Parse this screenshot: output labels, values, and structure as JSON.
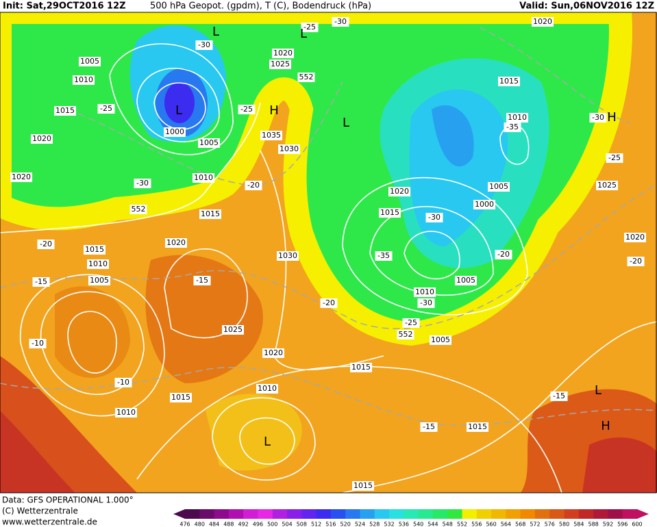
{
  "header": {
    "init": "Init: Sat,29OCT2016 12Z",
    "title": "500 hPa Geopot. (gpdm), T (C), Bodendruck (hPa)",
    "valid": "Valid: Sun,06NOV2016 12Z"
  },
  "map": {
    "labels": [
      "-25",
      "-30",
      "1020",
      "L",
      "L",
      "-30",
      "1005",
      "1020",
      "1025",
      "552",
      "1010",
      "1015",
      "-25",
      "L",
      "H",
      "-25",
      "1015",
      "L",
      "1010",
      "-35",
      "-30",
      "H",
      "1000",
      "1035",
      "1005",
      "1020",
      "1030",
      "-25",
      "1020",
      "1010",
      "-30",
      "-20",
      "1025",
      "1005",
      "1020",
      "1000",
      "552",
      "1015",
      "1015",
      "-30",
      "1020",
      "1020",
      "-20",
      "1015",
      "1030",
      "-35",
      "-20",
      "-20",
      "1010",
      "1005",
      "-15",
      "-15",
      "1005",
      "1010",
      "-30",
      "-20",
      "1025",
      "-25",
      "552",
      "1005",
      "-10",
      "1020",
      "1015",
      "-10",
      "1010",
      "1015",
      "-15",
      "L",
      "1010",
      "-15",
      "1015",
      "H",
      "L",
      "1015"
    ]
  },
  "footer": {
    "data": "Data: GFS OPERATIONAL 1.000°",
    "copyright": "(C) Wetterzentrale",
    "url": "www.wetterzentrale.de"
  },
  "colorbar": {
    "ticks": [
      476,
      480,
      484,
      488,
      492,
      496,
      500,
      504,
      508,
      512,
      516,
      520,
      524,
      528,
      532,
      536,
      540,
      544,
      548,
      552,
      556,
      560,
      564,
      568,
      572,
      576,
      580,
      584,
      588,
      592,
      596,
      600
    ],
    "colors": [
      "#4b0a4b",
      "#6a0a6a",
      "#8c0a8c",
      "#b010b0",
      "#d21ed2",
      "#e628e6",
      "#b020e0",
      "#8a20e8",
      "#6424f0",
      "#3c2cf0",
      "#2850f0",
      "#2878f0",
      "#28a0f0",
      "#28c8f0",
      "#28e0e0",
      "#28e8b4",
      "#28e890",
      "#28e868",
      "#30e840",
      "#f0f000",
      "#f0d000",
      "#f0b800",
      "#f0a000",
      "#f08800",
      "#e07010",
      "#d85818",
      "#d04020",
      "#c02828",
      "#b01838",
      "#a01048",
      "#c01060"
    ]
  }
}
